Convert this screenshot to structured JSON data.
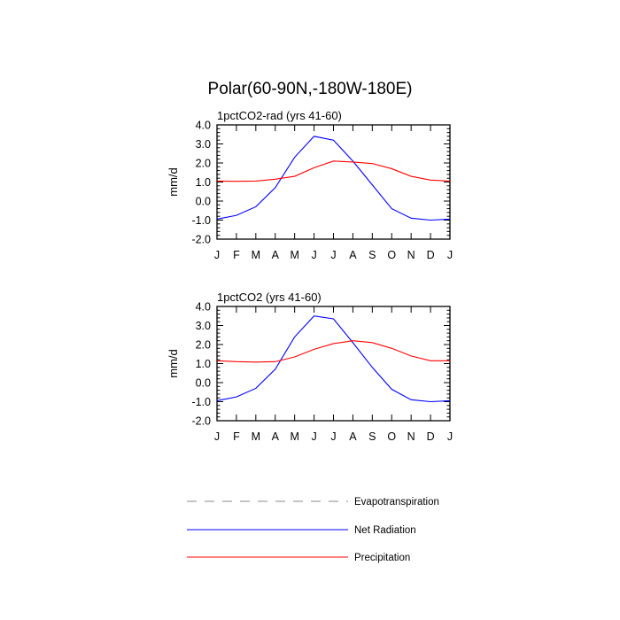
{
  "main_title": "Polar(60-90N,-180W-180E)",
  "legend": {
    "items": [
      {
        "label": "Evapotranspiration",
        "color": "#888888",
        "dash": "dashed"
      },
      {
        "label": "Net Radiation",
        "color": "#0000ff",
        "dash": "solid"
      },
      {
        "label": "Precipitation",
        "color": "#ff0000",
        "dash": "solid"
      }
    ]
  },
  "chart_data": [
    {
      "type": "line",
      "title": "1pctCO2-rad (yrs 41-60)",
      "ylabel": "mm/d",
      "xlabel": "",
      "categories": [
        "J",
        "F",
        "M",
        "A",
        "M",
        "J",
        "J",
        "A",
        "S",
        "O",
        "N",
        "D",
        "J"
      ],
      "ylim": [
        -2.0,
        4.0
      ],
      "yticks": [
        "4.0",
        "3.0",
        "2.0",
        "1.0",
        "0.0",
        "-1.0",
        "-2.0"
      ],
      "series": [
        {
          "name": "Net Radiation",
          "color": "#0000ff",
          "values": [
            -0.95,
            -0.75,
            -0.3,
            0.7,
            2.3,
            3.4,
            3.2,
            2.1,
            0.85,
            -0.4,
            -0.9,
            -1.0,
            -0.95
          ]
        },
        {
          "name": "Precipitation",
          "color": "#ff0000",
          "values": [
            1.05,
            1.04,
            1.05,
            1.15,
            1.3,
            1.75,
            2.1,
            2.05,
            1.97,
            1.7,
            1.3,
            1.1,
            1.05
          ]
        }
      ]
    },
    {
      "type": "line",
      "title": "1pctCO2 (yrs 41-60)",
      "ylabel": "mm/d",
      "xlabel": "",
      "categories": [
        "J",
        "F",
        "M",
        "A",
        "M",
        "J",
        "J",
        "A",
        "S",
        "O",
        "N",
        "D",
        "J"
      ],
      "ylim": [
        -2.0,
        4.0
      ],
      "yticks": [
        "4.0",
        "3.0",
        "2.0",
        "1.0",
        "0.0",
        "-1.0",
        "-2.0"
      ],
      "series": [
        {
          "name": "Net Radiation",
          "color": "#0000ff",
          "values": [
            -0.95,
            -0.75,
            -0.3,
            0.7,
            2.4,
            3.5,
            3.35,
            2.1,
            0.8,
            -0.35,
            -0.9,
            -1.0,
            -0.95
          ]
        },
        {
          "name": "Precipitation",
          "color": "#ff0000",
          "values": [
            1.15,
            1.1,
            1.08,
            1.1,
            1.35,
            1.75,
            2.05,
            2.2,
            2.1,
            1.8,
            1.4,
            1.15,
            1.15
          ]
        }
      ]
    }
  ]
}
